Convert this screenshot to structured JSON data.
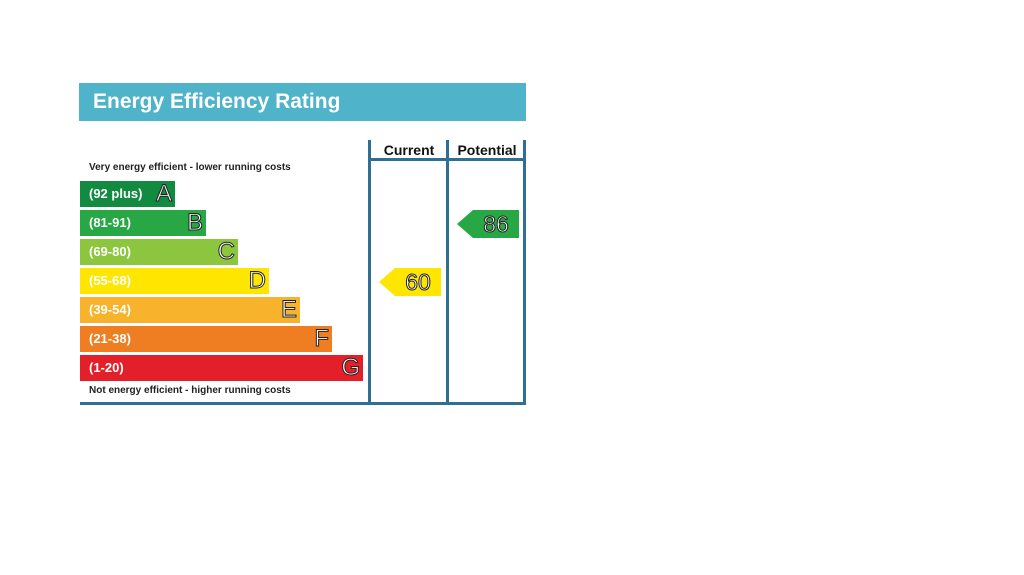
{
  "chart_data": {
    "type": "bar",
    "title": "Energy Efficiency Rating",
    "columns": [
      "Current",
      "Potential"
    ],
    "top_note": "Very energy efficient - lower running costs",
    "bottom_note": "Not energy efficient - higher running costs",
    "bands": [
      {
        "range": "(92 plus)",
        "letter": "A",
        "color": "#138a42"
      },
      {
        "range": "(81-91)",
        "letter": "B",
        "color": "#28a745"
      },
      {
        "range": "(69-80)",
        "letter": "C",
        "color": "#8cc63f"
      },
      {
        "range": "(55-68)",
        "letter": "D",
        "color": "#ffe600"
      },
      {
        "range": "(39-54)",
        "letter": "E",
        "color": "#f7b32b"
      },
      {
        "range": "(21-38)",
        "letter": "F",
        "color": "#ef7d22"
      },
      {
        "range": "(1-20)",
        "letter": "G",
        "color": "#e3202a"
      }
    ],
    "current": {
      "value": 60,
      "band": "D",
      "color": "#ffe600"
    },
    "potential": {
      "value": 86,
      "band": "B",
      "color": "#28a745"
    }
  }
}
